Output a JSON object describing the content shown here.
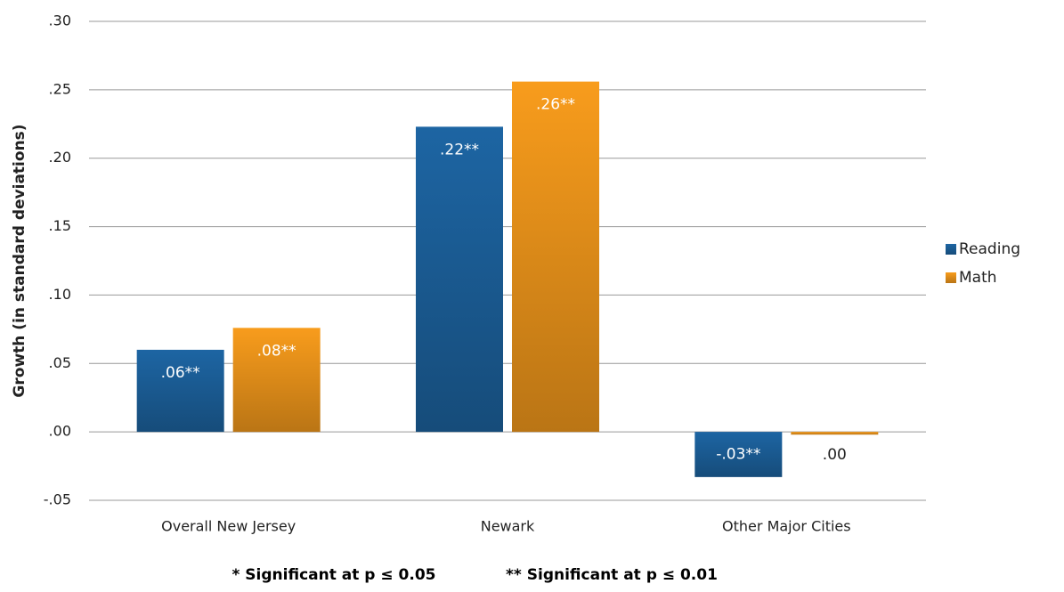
{
  "chart_data": {
    "type": "bar",
    "y_label": "Growth (in standard deviations)",
    "categories": [
      "Overall New Jersey",
      "Newark",
      "Other Major Cities"
    ],
    "series": [
      {
        "name": "Reading",
        "color": "#1d65a3",
        "values": [
          0.06,
          0.223,
          -0.033
        ],
        "value_labels": [
          ".06**",
          ".22**",
          "-.03**"
        ]
      },
      {
        "name": "Math",
        "color": "#f89c1c",
        "values": [
          0.076,
          0.256,
          -0.002
        ],
        "value_labels": [
          ".08**",
          ".26**",
          ".00"
        ]
      }
    ],
    "ylim": [
      -0.05,
      0.3
    ],
    "yticks": [
      {
        "value": -0.05,
        "label": "-.05"
      },
      {
        "value": 0,
        "label": ".00"
      },
      {
        "value": 0.05,
        "label": ".05"
      },
      {
        "value": 0.1,
        "label": ".10"
      },
      {
        "value": 0.15,
        "label": ".15"
      },
      {
        "value": 0.2,
        "label": ".20"
      },
      {
        "value": 0.25,
        "label": ".25"
      },
      {
        "value": 0.3,
        "label": ".30"
      }
    ],
    "grid": true,
    "legend": "right",
    "footnotes": [
      "* Significant  at p ≤ 0.05",
      "** Significant  at p ≤ 0.01"
    ]
  }
}
